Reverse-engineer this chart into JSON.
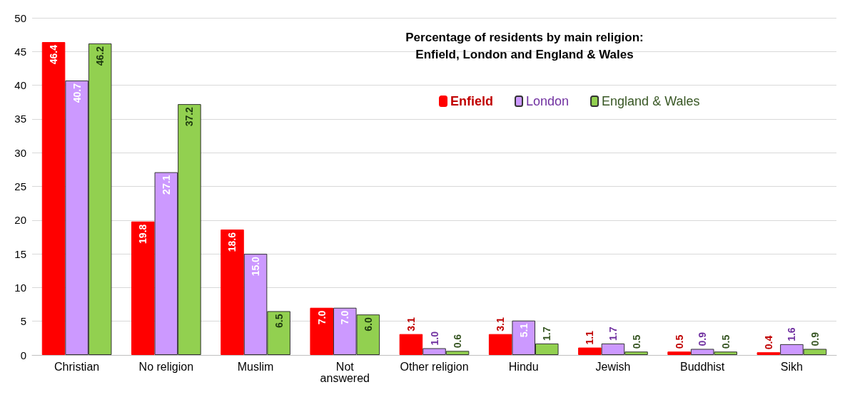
{
  "chart_data": {
    "type": "bar",
    "title": "Percentage of residents by main religion:\nEnfield, London and England & Wales",
    "categories": [
      "Christian",
      "No religion",
      "Muslim",
      "Not\nanswered",
      "Other religion",
      "Hindu",
      "Jewish",
      "Buddhist",
      "Sikh"
    ],
    "series": [
      {
        "name": "Enfield",
        "color": "#ff0000",
        "values": [
          46.4,
          19.8,
          18.6,
          7.0,
          3.1,
          3.1,
          1.1,
          0.5,
          0.4
        ],
        "value_labels": [
          "46.4",
          "19.8",
          "18.6",
          "7.0",
          "3.1",
          "3.1",
          "1.1",
          "0.5",
          "0.4"
        ]
      },
      {
        "name": "London",
        "color": "#cc99ff",
        "values": [
          40.7,
          27.1,
          15.0,
          7.0,
          1.0,
          5.1,
          1.7,
          0.9,
          1.6
        ],
        "value_labels": [
          "40.7",
          "27.1",
          "15.0",
          "7.0",
          "1.0",
          "5.1",
          "1.7",
          "0.9",
          "1.6"
        ]
      },
      {
        "name": "England & Wales",
        "color": "#92d050",
        "values": [
          46.2,
          37.2,
          6.5,
          6.0,
          0.6,
          1.7,
          0.5,
          0.5,
          0.9
        ],
        "value_labels": [
          "46.2",
          "37.2",
          "6.5",
          "6.0",
          "0.6",
          "1.7",
          "0.5",
          "0.5",
          "0.9"
        ]
      }
    ],
    "ylim": [
      0,
      50
    ],
    "yticks": [
      0,
      5,
      10,
      15,
      20,
      25,
      30,
      35,
      40,
      45,
      50
    ],
    "grid": "y",
    "legend": "top right"
  }
}
